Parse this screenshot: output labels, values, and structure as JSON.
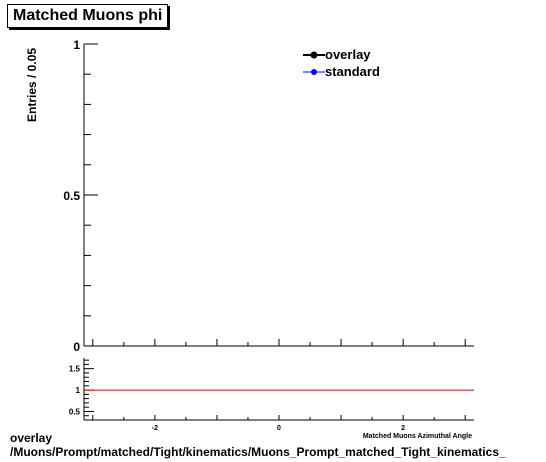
{
  "title": "Matched Muons phi",
  "caption": {
    "line1": "overlay",
    "line2": "/Muons/Prompt/matched/Tight/kinematics/Muons_Prompt_matched_Tight_kinematics_"
  },
  "colors": {
    "overlay": "#000000",
    "standard": "#0000ff",
    "ratio_line": "#cc0000"
  },
  "chart_data": [
    {
      "type": "line",
      "title": "Matched Muons phi",
      "ylabel": "Entries / 0.05",
      "xlabel": "",
      "xlim": [
        -3.1416,
        3.1416
      ],
      "ylim": [
        0,
        1
      ],
      "y_tick_labels": [
        "0",
        "0.5",
        "1"
      ],
      "grid": false,
      "legend_position": "top-right",
      "series": [
        {
          "name": "overlay",
          "marker": "circle",
          "color": "#000000",
          "x": [],
          "y": []
        },
        {
          "name": "standard",
          "marker": "circle",
          "color": "#0000ff",
          "x": [],
          "y": []
        }
      ]
    },
    {
      "type": "line",
      "title": "",
      "xlabel": "Matched Muons Azimuthal Angle",
      "ylabel": "",
      "xlim": [
        -3.1416,
        3.1416
      ],
      "ylim": [
        0.3,
        1.75
      ],
      "x_tick_labels": [
        "-2",
        "0",
        "2"
      ],
      "y_tick_labels": [
        "0.5",
        "1",
        "1.5"
      ],
      "grid": false,
      "series": [
        {
          "name": "",
          "color": "#cc0000",
          "x": [
            -3.1416,
            3.1416
          ],
          "y": [
            1,
            1
          ]
        }
      ]
    }
  ]
}
